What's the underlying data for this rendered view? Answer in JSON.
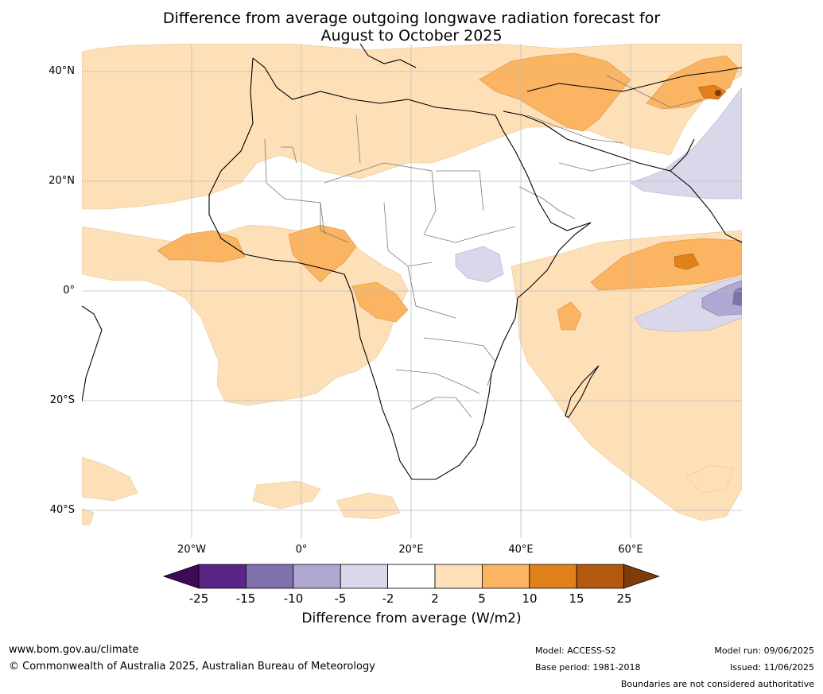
{
  "title_line1": "Difference from average outgoing longwave radiation forecast for",
  "title_line2": "August to October 2025",
  "lat_labels": [
    "40°N",
    "20°N",
    "0°",
    "20°S",
    "40°S"
  ],
  "lon_labels": [
    "20°W",
    "0°",
    "20°E",
    "40°E",
    "60°E"
  ],
  "colorbar": {
    "title": "Difference from average (W/m2)",
    "ticks": [
      "-25",
      "-15",
      "-10",
      "-5",
      "-2",
      "2",
      "5",
      "10",
      "15",
      "25"
    ],
    "colors": [
      "#3d0a57",
      "#5a2586",
      "#8071ac",
      "#b0a8d2",
      "#d8d8ea",
      "#ffffff",
      "#fde0b8",
      "#fbb461",
      "#e0811b",
      "#b3590d",
      "#7f3b08"
    ]
  },
  "footer": {
    "website": "www.bom.gov.au/climate",
    "copyright": "© Commonwealth of Australia 2025, Australian Bureau of Meteorology",
    "model": "Model: ACCESS-S2",
    "base_period": "Base period: 1981-2018",
    "model_run": "Model run: 09/06/2025",
    "issued": "Issued: 11/06/2025",
    "disclaimer": "Boundaries are not considered authoritative"
  }
}
